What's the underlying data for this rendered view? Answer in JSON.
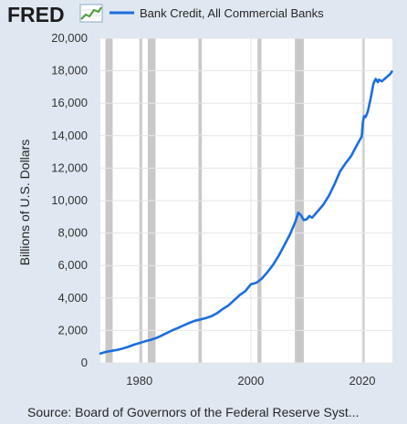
{
  "logo": {
    "text": "FRED"
  },
  "source": "Source: Board of Governors of the Federal Reserve Syst...",
  "colors": {
    "background": "#dfe8f1",
    "plot_background": "#ffffff",
    "series_line": "#1a6ede",
    "recession_shade": "#c8c8c8",
    "gridline": "#e6e6e6"
  },
  "chart_data": {
    "type": "line",
    "ylabel": "Billions of U.S. Dollars",
    "xlim": [
      1973.0,
      2025.4
    ],
    "ylim": [
      0,
      20000
    ],
    "y_ticks": [
      0,
      2000,
      4000,
      6000,
      8000,
      10000,
      12000,
      14000,
      16000,
      18000,
      20000
    ],
    "y_tick_labels": [
      "0",
      "2,000",
      "4,000",
      "6,000",
      "8,000",
      "10,000",
      "12,000",
      "14,000",
      "16,000",
      "18,000",
      "20,000"
    ],
    "x_ticks": [
      1980,
      2000,
      2020
    ],
    "x_tick_labels": [
      "1980",
      "2000",
      "2020"
    ],
    "grid": true,
    "legend_position": "top",
    "recessions": [
      [
        1973.9,
        1975.2
      ],
      [
        1980.0,
        1980.5
      ],
      [
        1981.5,
        1982.9
      ],
      [
        1990.6,
        1991.2
      ],
      [
        2001.2,
        2001.9
      ],
      [
        2007.9,
        2009.5
      ],
      [
        2020.1,
        2020.4
      ]
    ],
    "series": [
      {
        "name": "Bank Credit, All Commercial Banks",
        "x": [
          1973.0,
          1974.0,
          1975.0,
          1976.0,
          1977.0,
          1978.0,
          1979.0,
          1980.0,
          1981.0,
          1982.0,
          1983.0,
          1984.0,
          1985.0,
          1986.0,
          1987.0,
          1988.0,
          1989.0,
          1990.0,
          1991.0,
          1992.0,
          1993.0,
          1994.0,
          1995.0,
          1996.0,
          1997.0,
          1998.0,
          1999.0,
          2000.0,
          2001.0,
          2002.0,
          2003.0,
          2004.0,
          2005.0,
          2006.0,
          2007.0,
          2008.0,
          2008.5,
          2009.0,
          2009.5,
          2010.0,
          2010.5,
          2011.0,
          2012.0,
          2013.0,
          2014.0,
          2015.0,
          2016.0,
          2017.0,
          2018.0,
          2019.0,
          2019.9,
          2020.1,
          2020.3,
          2020.6,
          2021.0,
          2021.5,
          2022.0,
          2022.4,
          2022.8,
          2023.0,
          2023.5,
          2024.0,
          2024.5,
          2025.0,
          2025.3
        ],
        "values": [
          580,
          680,
          740,
          800,
          880,
          990,
          1120,
          1220,
          1330,
          1420,
          1530,
          1690,
          1860,
          2020,
          2170,
          2320,
          2470,
          2600,
          2680,
          2770,
          2890,
          3080,
          3330,
          3550,
          3860,
          4180,
          4420,
          4840,
          4940,
          5200,
          5600,
          6050,
          6600,
          7250,
          7900,
          8700,
          9250,
          9100,
          8800,
          8850,
          9050,
          8950,
          9350,
          9750,
          10300,
          11000,
          11800,
          12300,
          12750,
          13400,
          13950,
          14800,
          15200,
          15150,
          15500,
          16300,
          17200,
          17500,
          17300,
          17450,
          17350,
          17500,
          17650,
          17800,
          17950
        ]
      }
    ]
  }
}
